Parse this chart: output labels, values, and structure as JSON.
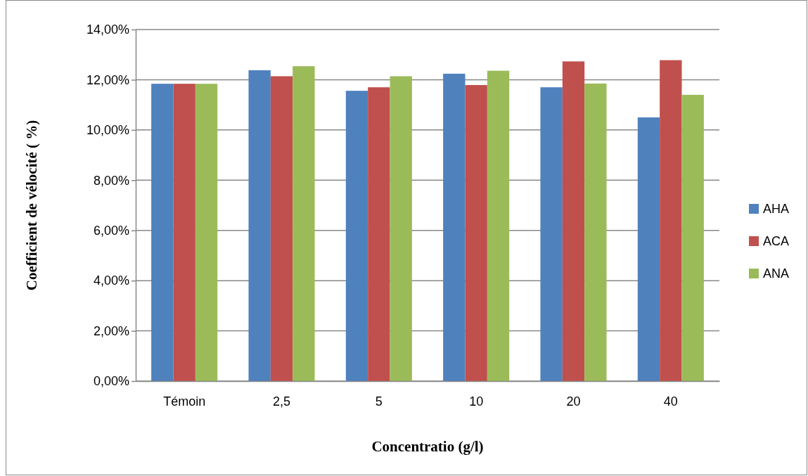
{
  "chart_data": {
    "type": "bar",
    "xlabel": "Concentratio (g/l)",
    "ylabel": "Coefficient de vélocité ( %)",
    "categories": [
      "Témoin",
      "2,5",
      "5",
      "10",
      "20",
      "40"
    ],
    "series": [
      {
        "name": "AHA",
        "color": "#4f81bd",
        "values": [
          11.84,
          12.38,
          11.56,
          12.24,
          11.7,
          10.5
        ]
      },
      {
        "name": "ACA",
        "color": "#c0504d",
        "values": [
          11.84,
          12.14,
          11.7,
          11.79,
          12.73,
          12.78
        ]
      },
      {
        "name": "ANA",
        "color": "#9bbb59",
        "values": [
          11.84,
          12.54,
          12.14,
          12.36,
          11.85,
          11.4
        ]
      }
    ],
    "ylim": [
      0,
      14
    ],
    "yticks": [
      {
        "value": 0,
        "label": "0,00%"
      },
      {
        "value": 2,
        "label": "2,00%"
      },
      {
        "value": 4,
        "label": "4,00%"
      },
      {
        "value": 6,
        "label": "6,00%"
      },
      {
        "value": 8,
        "label": "8,00%"
      },
      {
        "value": 10,
        "label": "10,00%"
      },
      {
        "value": 12,
        "label": "12,00%"
      },
      {
        "value": 14,
        "label": "14,00%"
      }
    ],
    "grid": "y",
    "legend": "right"
  }
}
